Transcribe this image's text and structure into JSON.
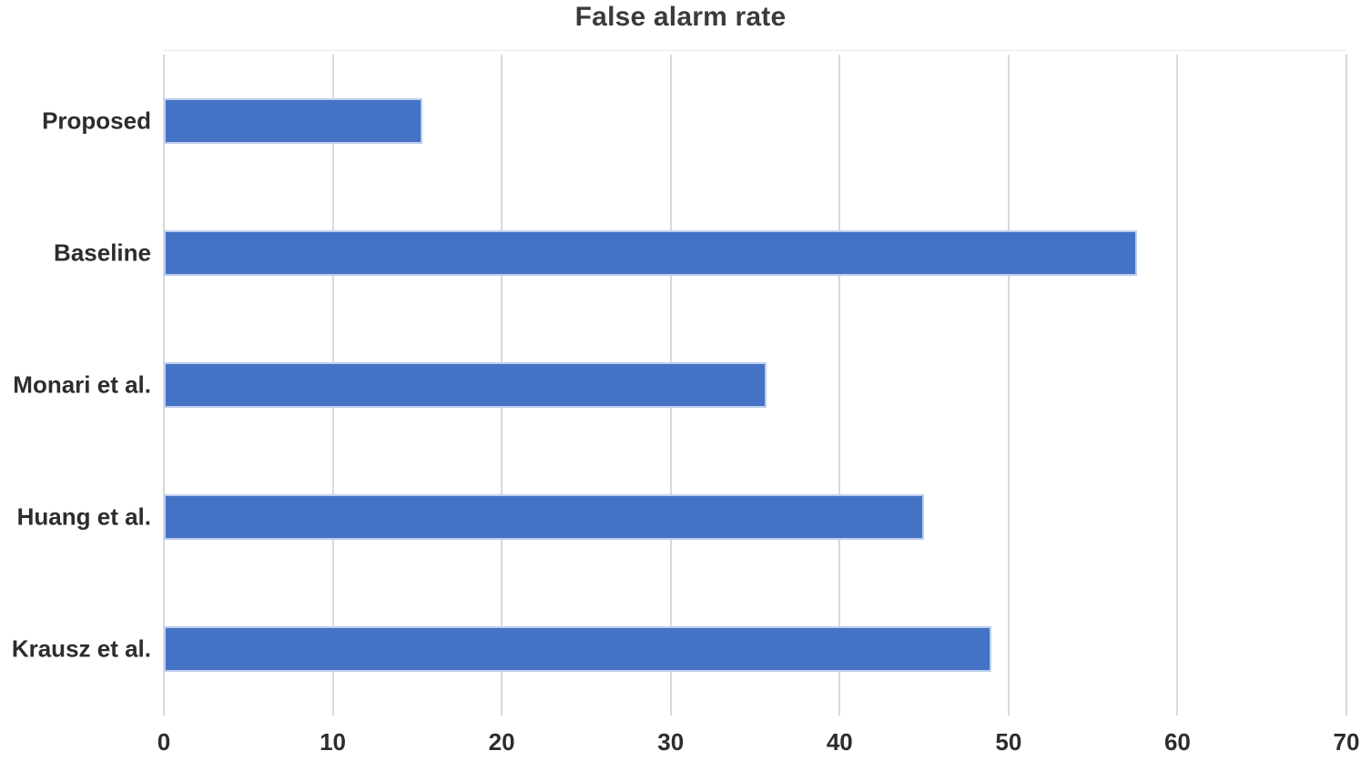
{
  "chart_data": {
    "type": "bar",
    "orientation": "horizontal",
    "title": "False alarm rate",
    "categories": [
      "Proposed",
      "Baseline",
      "Monari et al.",
      "Huang et al.",
      "Krausz et al."
    ],
    "values": [
      15.3,
      57.6,
      35.7,
      45,
      49
    ],
    "xlabel": "",
    "ylabel": "",
    "xlim": [
      0,
      70
    ],
    "xticks": [
      0,
      10,
      20,
      30,
      40,
      50,
      60,
      70
    ],
    "grid": true,
    "legend": false,
    "colors": {
      "bar_fill": "#4472c4",
      "bar_edge": "#bdcdec",
      "gridline": "#d9d9d9",
      "label_text": "#2d2d2d",
      "title_text": "#3b3b3b",
      "background": "#ffffff"
    }
  }
}
